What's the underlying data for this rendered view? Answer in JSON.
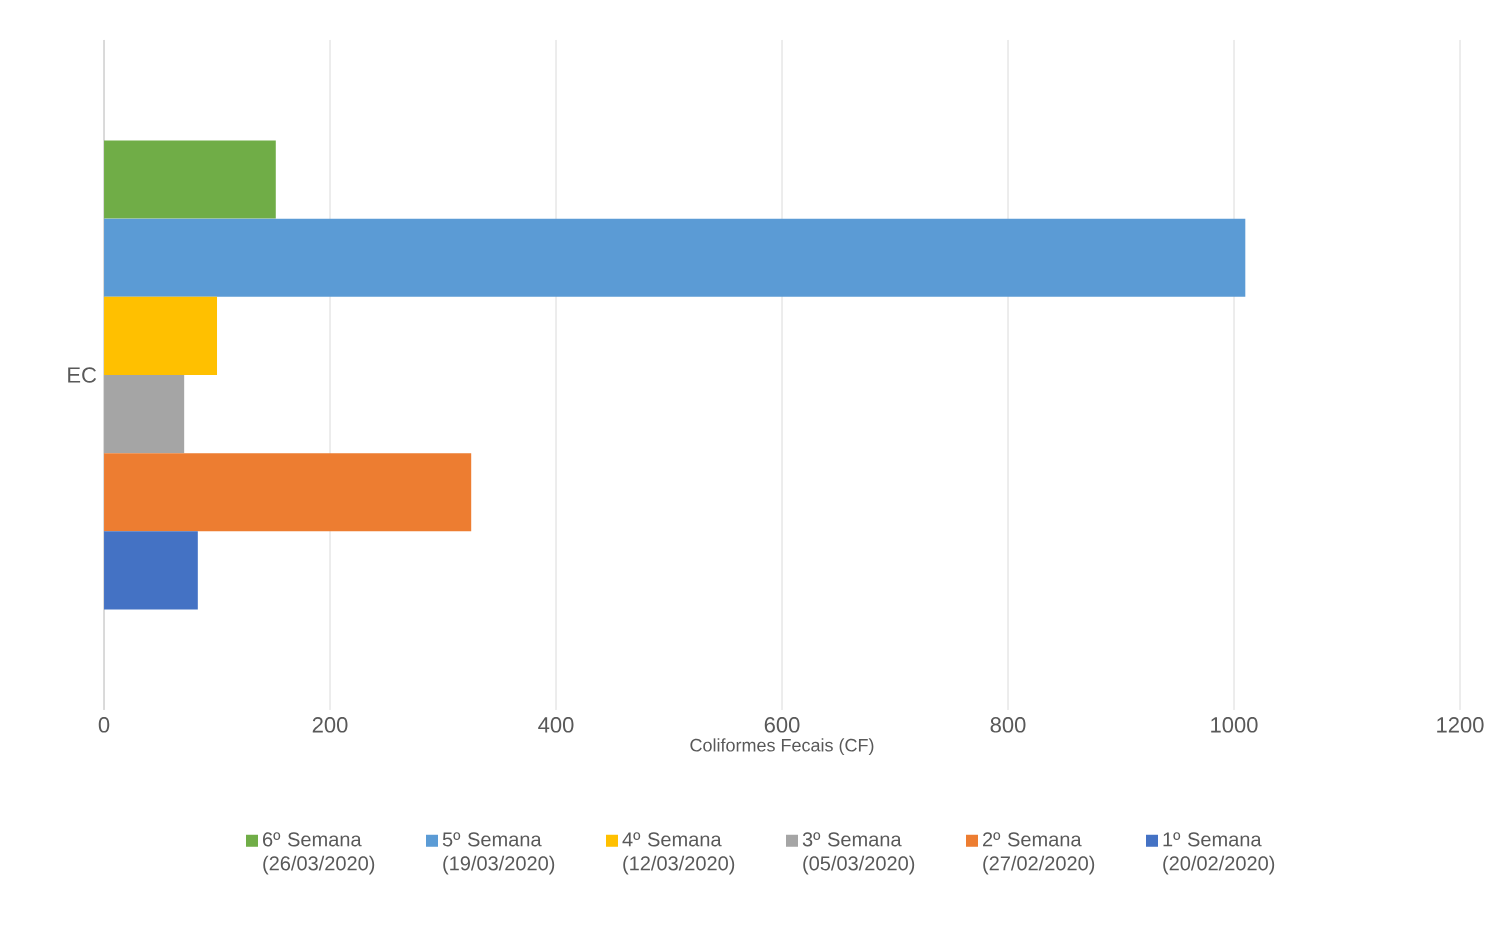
{
  "chart_data": {
    "type": "bar",
    "orientation": "horizontal",
    "xlabel": "Coliformes Fecais (CF)",
    "categories": [
      "EC"
    ],
    "series": [
      {
        "name": "6º Semana (26/03/2020)",
        "color": "#70ad47",
        "values": [
          152
        ]
      },
      {
        "name": "5º Semana (19/03/2020)",
        "color": "#5b9bd5",
        "values": [
          1010
        ]
      },
      {
        "name": "4º Semana (12/03/2020)",
        "color": "#ffc000",
        "values": [
          100
        ]
      },
      {
        "name": "3º Semana (05/03/2020)",
        "color": "#a5a5a5",
        "values": [
          71
        ]
      },
      {
        "name": "2º Semana (27/02/2020)",
        "color": "#ed7d31",
        "values": [
          325
        ]
      },
      {
        "name": "1º Semana (20/02/2020)",
        "color": "#4472c4",
        "values": [
          83
        ]
      }
    ],
    "xlim": [
      0,
      1200
    ],
    "xticks": [
      0,
      200,
      400,
      600,
      800,
      1000,
      1200
    ],
    "grid": "x",
    "legend": "bottom"
  }
}
